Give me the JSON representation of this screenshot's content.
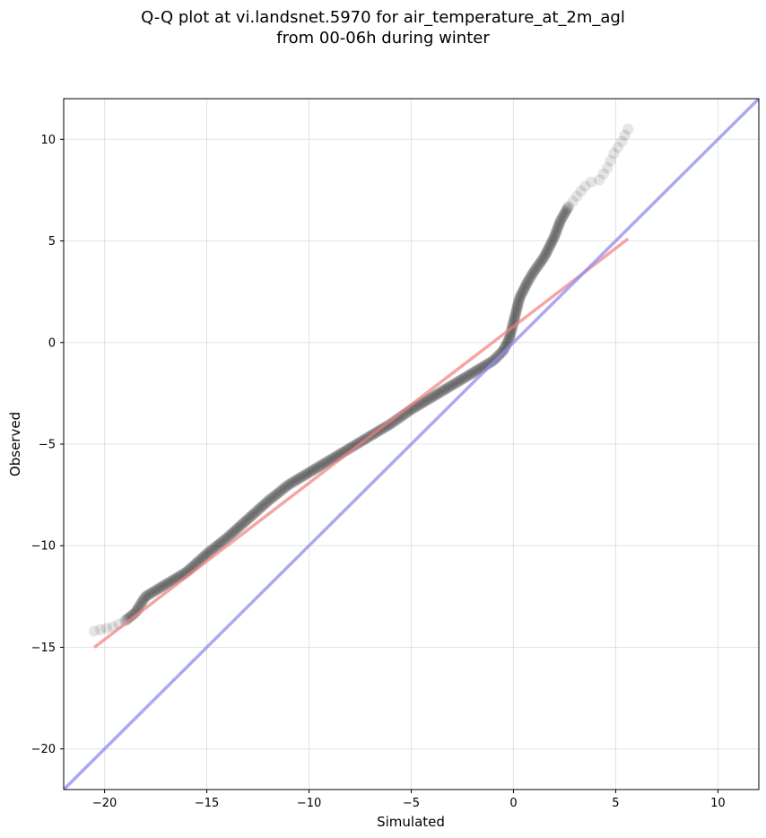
{
  "chart_data": {
    "type": "scatter",
    "title": "Q-Q plot at vi.landsnet.5970 for air_temperature_at_2m_agl",
    "subtitle": "from 00-06h during winter",
    "xlabel": "Simulated",
    "ylabel": "Observed",
    "xlim": [
      -22,
      12
    ],
    "ylim": [
      -22,
      12
    ],
    "xticks": [
      -20,
      -15,
      -10,
      -5,
      0,
      5,
      10
    ],
    "yticks": [
      -20,
      -15,
      -10,
      -5,
      0,
      5,
      10
    ],
    "xtick_labels": [
      "−20",
      "−15",
      "−10",
      "−5",
      "0",
      "5",
      "10"
    ],
    "ytick_labels": [
      "−20",
      "−15",
      "−10",
      "−5",
      "0",
      "5",
      "10"
    ],
    "grid": true,
    "colors": {
      "points": "#000000",
      "fit_line": "#f08080",
      "identity_line": "#8c8cf0"
    },
    "quantile_curve": {
      "x": [
        -20.5,
        -19.6,
        -19.0,
        -18.5,
        -18.0,
        -17.0,
        -16.0,
        -15.0,
        -14.0,
        -13.0,
        -12.0,
        -11.0,
        -10.0,
        -9.0,
        -8.0,
        -7.0,
        -6.0,
        -5.0,
        -4.0,
        -3.0,
        -2.0,
        -1.0,
        -0.5,
        -0.2,
        0.0,
        0.3,
        0.7,
        1.0,
        1.5,
        2.0,
        2.3,
        2.7,
        3.1,
        3.5,
        3.8,
        4.2,
        4.6,
        4.9,
        5.3,
        5.6
      ],
      "y": [
        -14.2,
        -14.0,
        -13.7,
        -13.3,
        -12.5,
        -11.9,
        -11.3,
        -10.4,
        -9.6,
        -8.7,
        -7.8,
        -7.0,
        -6.4,
        -5.8,
        -5.2,
        -4.6,
        -4.0,
        -3.3,
        -2.7,
        -2.1,
        -1.5,
        -0.9,
        -0.4,
        0.2,
        1.0,
        2.2,
        3.0,
        3.5,
        4.2,
        5.2,
        6.0,
        6.7,
        7.2,
        7.7,
        7.9,
        8.0,
        8.6,
        9.3,
        9.9,
        10.5
      ]
    },
    "fit_line": {
      "x": [
        -20.5,
        5.6
      ],
      "y": [
        -15.0,
        5.1
      ]
    },
    "identity_line": {
      "x": [
        -22,
        12
      ],
      "y": [
        -22,
        12
      ]
    }
  }
}
